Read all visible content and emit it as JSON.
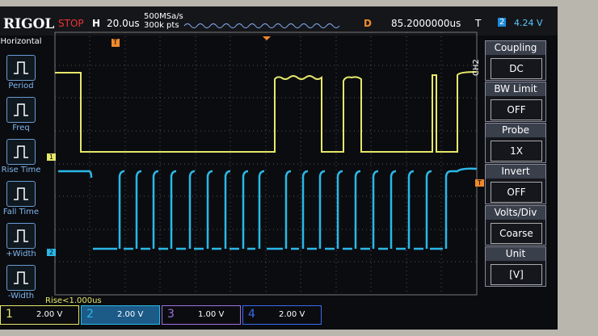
{
  "header": {
    "brand": "RIGOL",
    "status": "STOP",
    "h_label": "H",
    "timebase": "20.0us",
    "sample_rate": "500MSa/s",
    "memory_depth": "300k pts",
    "delay_label": "D",
    "delay": "85.2000000us",
    "trigger_label": "T",
    "trigger_source": "2",
    "trigger_level": "4.24 V"
  },
  "left_menu": {
    "title": "Horizontal",
    "items": [
      "Period",
      "Freq",
      "Rise Time",
      "Fall Time",
      "+Width",
      "-Width"
    ]
  },
  "right_menu": {
    "channel": "CH2",
    "items": [
      {
        "label": "Coupling",
        "value": "DC"
      },
      {
        "label": "BW Limit",
        "value": "OFF"
      },
      {
        "label": "Probe",
        "value": "1X"
      },
      {
        "label": "Invert",
        "value": "OFF"
      },
      {
        "label": "Volts/Div",
        "value": "Coarse"
      },
      {
        "label": "Unit",
        "value": "[V]"
      }
    ]
  },
  "markers": {
    "trigger_pos": "T",
    "ch1": "1",
    "ch2": "2",
    "trigger_level": "T"
  },
  "measurement": "Rise<1.000us",
  "channels": [
    {
      "number": "1",
      "scale": "2.00 V"
    },
    {
      "number": "2",
      "scale": "2.00 V"
    },
    {
      "number": "3",
      "scale": "1.00 V"
    },
    {
      "number": "4",
      "scale": "2.00 V"
    }
  ]
}
